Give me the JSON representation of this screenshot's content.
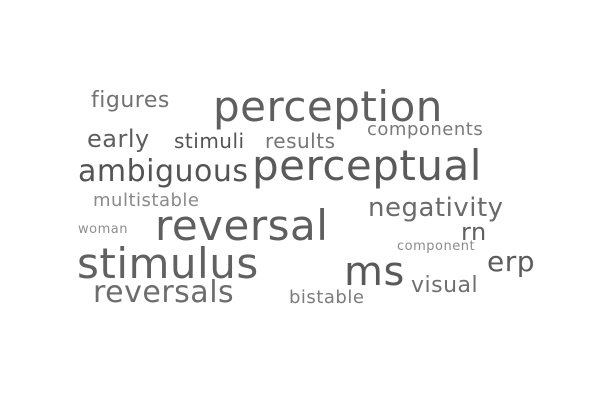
{
  "words": [
    {
      "text": "perception",
      "color": "#5f5f5f"
    },
    {
      "text": "perceptual",
      "color": "#5a5a5a"
    },
    {
      "text": "reversal",
      "color": "#5e5e5e"
    },
    {
      "text": "stimulus",
      "color": "#616161"
    },
    {
      "text": "ms",
      "color": "#595959"
    },
    {
      "text": "ambiguous",
      "color": "#545454"
    },
    {
      "text": "reversals",
      "color": "#6d6d6d"
    },
    {
      "text": "negativity",
      "color": "#6a6a6a"
    },
    {
      "text": "erp",
      "color": "#5c5c5c"
    },
    {
      "text": "rn",
      "color": "#5f5f5f"
    },
    {
      "text": "figures",
      "color": "#727272"
    },
    {
      "text": "early",
      "color": "#5e5e5e"
    },
    {
      "text": "stimuli",
      "color": "#545454"
    },
    {
      "text": "results",
      "color": "#767676"
    },
    {
      "text": "components",
      "color": "#7a7a7a"
    },
    {
      "text": "multistable",
      "color": "#8a8a8a"
    },
    {
      "text": "visual",
      "color": "#6f6f6f"
    },
    {
      "text": "bistable",
      "color": "#7c7c7c"
    },
    {
      "text": "woman",
      "color": "#8f8f8f"
    },
    {
      "text": "component",
      "color": "#8c8c8c"
    }
  ]
}
